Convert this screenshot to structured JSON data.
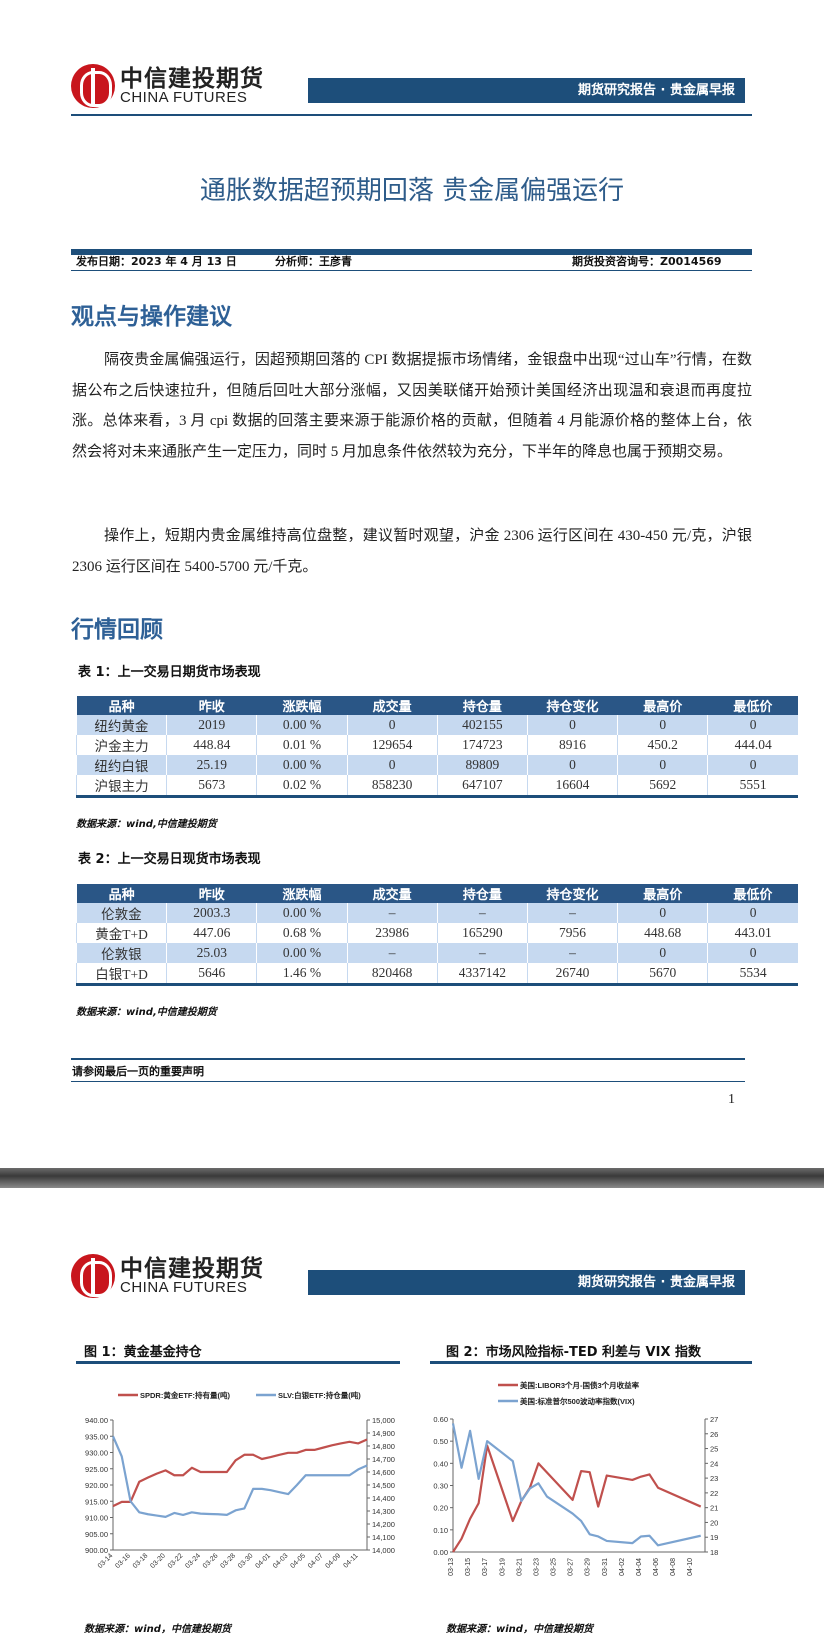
{
  "page1": {
    "logo": {
      "cn": "中信建投期货",
      "en": "CHINA FUTURES"
    },
    "header_label": "期货研究报告 · 贵金属早报",
    "title": "通胀数据超预期回落  贵金属偏强运行",
    "meta": {
      "date": "发布日期：2023 年 4 月 13 日",
      "analyst": "分析师：王彦青",
      "license": "期货投资咨询号：Z0014569"
    },
    "section1": "观点与操作建议",
    "paragraphs": [
      "隔夜贵金属偏强运行，因超预期回落的 CPI 数据提振市场情绪，金银盘中出现“过山车”行情，在数据公布之后快速拉升，但随后回吐大部分涨幅，又因美联储开始预计美国经济出现温和衰退而再度拉涨。总体来看，3 月 cpi 数据的回落主要来源于能源价格的贡献，但随着 4 月能源价格的整体上台，依然会将对未来通胀产生一定压力，同时 5 月加息条件依然较为充分，下半年的降息也属于预期交易。",
      "操作上，短期内贵金属维持高位盘整，建议暂时观望，沪金 2306 运行区间在 430-450 元/克，沪银 2306 运行区间在 5400-5700 元/千克。"
    ],
    "section2": "行情回顾",
    "table1": {
      "caption": "表 1：上一交易日期货市场表现",
      "headers": [
        "品种",
        "昨收",
        "涨跌幅",
        "成交量",
        "持仓量",
        "持仓变化",
        "最高价",
        "最低价"
      ],
      "rows": [
        [
          "纽约黄金",
          "2019",
          "0.00 %",
          "0",
          "402155",
          "0",
          "0",
          "0"
        ],
        [
          "沪金主力",
          "448.84",
          "0.01 %",
          "129654",
          "174723",
          "8916",
          "450.2",
          "444.04"
        ],
        [
          "纽约白银",
          "25.19",
          "0.00 %",
          "0",
          "89809",
          "0",
          "0",
          "0"
        ],
        [
          "沪银主力",
          "5673",
          "0.02 %",
          "858230",
          "647107",
          "16604",
          "5692",
          "5551"
        ]
      ],
      "source": "数据来源：wind,中信建投期货"
    },
    "table2": {
      "caption": "表 2：上一交易日现货市场表现",
      "headers": [
        "品种",
        "昨收",
        "涨跌幅",
        "成交量",
        "持仓量",
        "持仓变化",
        "最高价",
        "最低价"
      ],
      "rows": [
        [
          "伦敦金",
          "2003.3",
          "0.00 %",
          "–",
          "–",
          "–",
          "0",
          "0"
        ],
        [
          "黄金T+D",
          "447.06",
          "0.68 %",
          "23986",
          "165290",
          "7956",
          "448.68",
          "443.01"
        ],
        [
          "伦敦银",
          "25.03",
          "0.00 %",
          "–",
          "–",
          "–",
          "0",
          "0"
        ],
        [
          "白银T+D",
          "5646",
          "1.46 %",
          "820468",
          "4337142",
          "26740",
          "5670",
          "5534"
        ]
      ],
      "source": "数据来源：wind,中信建投期货"
    },
    "disclaimer": "请参阅最后一页的重要声明",
    "page_number": "1"
  },
  "page2": {
    "logo": {
      "cn": "中信建投期货",
      "en": "CHINA FUTURES"
    },
    "header_label": "期货研究报告 · 贵金属早报",
    "source1": "数据来源：wind，中信建投期货",
    "source2": "数据来源：wind，中信建投期货"
  },
  "colors": {
    "brand_blue": "#1d4e7a",
    "red_series": "#c0504d",
    "blue_series": "#7ba3d0",
    "table_stripe": "#c6d9f0"
  },
  "chart_data": [
    {
      "type": "line",
      "title": "图 1：黄金基金持仓",
      "x": [
        "03-14",
        "03-15",
        "03-16",
        "03-17",
        "03-18",
        "03-19",
        "03-20",
        "03-21",
        "03-22",
        "03-23",
        "03-24",
        "03-25",
        "03-26",
        "03-27",
        "03-28",
        "03-29",
        "03-30",
        "03-31",
        "04-01",
        "04-02",
        "04-03",
        "04-04",
        "04-05",
        "04-06",
        "04-07",
        "04-08",
        "04-09",
        "04-10",
        "04-11",
        "04-12"
      ],
      "xticks": [
        "03-14",
        "03-16",
        "03-18",
        "03-20",
        "03-22",
        "03-24",
        "03-26",
        "03-28",
        "03-30",
        "04-01",
        "04-03",
        "04-05",
        "04-07",
        "04-09",
        "04-11"
      ],
      "y_left": {
        "range": [
          900,
          940
        ],
        "ticks": [
          "900.00",
          "905.00",
          "910.00",
          "915.00",
          "920.00",
          "925.00",
          "930.00",
          "935.00",
          "940.00"
        ]
      },
      "y_right": {
        "range": [
          14000,
          15000
        ],
        "ticks": [
          "14,000",
          "14,100",
          "14,200",
          "14,300",
          "14,400",
          "14,500",
          "14,600",
          "14,700",
          "14,800",
          "14,900",
          "15,000"
        ]
      },
      "legend": "top",
      "series": [
        {
          "name": "SPDR:黄金ETF:持有量(吨)",
          "axis": "left",
          "color": "#c0504d",
          "values": [
            913.5,
            914.8,
            914.8,
            921,
            922.3,
            923.5,
            924.5,
            923,
            923,
            925.3,
            924,
            924,
            924,
            924,
            927.6,
            929.3,
            929.3,
            928,
            928.6,
            929.3,
            929.9,
            929.9,
            930.8,
            930.8,
            931.5,
            932.2,
            932.8,
            933.3,
            932.8,
            934
          ]
        },
        {
          "name": "SLV:白银ETF:持仓量(吨)",
          "axis": "right",
          "color": "#7ba3d0",
          "values": [
            14875,
            14720,
            14375,
            14290,
            14275,
            14265,
            14255,
            14285,
            14270,
            14290,
            14280,
            14277,
            14275,
            14270,
            14305,
            14320,
            14470,
            14470,
            14460,
            14445,
            14430,
            14500,
            14575,
            14575,
            14575,
            14575,
            14575,
            14575,
            14620,
            14650
          ]
        }
      ]
    },
    {
      "type": "line",
      "title": "图 2：市场风险指标-TED 利差与 VIX 指数",
      "x": [
        "03-13",
        "03-14",
        "03-15",
        "03-16",
        "03-17",
        "03-18",
        "03-19",
        "03-20",
        "03-21",
        "03-22",
        "03-23",
        "03-24",
        "03-25",
        "03-26",
        "03-27",
        "03-28",
        "03-29",
        "03-30",
        "03-31",
        "04-01",
        "04-02",
        "04-03",
        "04-04",
        "04-05",
        "04-06",
        "04-07",
        "04-08",
        "04-09",
        "04-10",
        "04-11"
      ],
      "xticks": [
        "03-13",
        "03-15",
        "03-17",
        "03-19",
        "03-21",
        "03-23",
        "03-25",
        "03-27",
        "03-29",
        "03-31",
        "04-02",
        "04-04",
        "04-06",
        "04-08",
        "04-10"
      ],
      "y_left": {
        "range": [
          0,
          0.6
        ],
        "ticks": [
          "0.00",
          "0.10",
          "0.20",
          "0.30",
          "0.40",
          "0.50",
          "0.60"
        ]
      },
      "y_right": {
        "range": [
          18,
          27
        ],
        "ticks": [
          "18",
          "19",
          "20",
          "21",
          "22",
          "23",
          "24",
          "25",
          "26",
          "27"
        ]
      },
      "legend": "top",
      "series": [
        {
          "name": "美国:LIBOR3个月-国债3个月收益率",
          "axis": "left",
          "color": "#c0504d",
          "points": [
            [
              "03-13",
              0.0
            ],
            [
              "03-14",
              0.06
            ],
            [
              "03-15",
              0.15
            ],
            [
              "03-16",
              0.22
            ],
            [
              "03-17",
              0.48
            ],
            [
              "03-20",
              0.14
            ],
            [
              "03-21",
              0.23
            ],
            [
              "03-22",
              0.29
            ],
            [
              "03-23",
              0.4
            ],
            [
              "03-27",
              0.235
            ],
            [
              "03-28",
              0.365
            ],
            [
              "03-29",
              0.36
            ],
            [
              "03-30",
              0.205
            ],
            [
              "03-31",
              0.345
            ],
            [
              "04-03",
              0.325
            ],
            [
              "04-04",
              0.34
            ],
            [
              "04-05",
              0.35
            ],
            [
              "04-06",
              0.29
            ],
            [
              "04-11",
              0.205
            ]
          ]
        },
        {
          "name": "美国:标准普尔500波动率指数(VIX)",
          "axis": "right",
          "color": "#7ba3d0",
          "points": [
            [
              "03-13",
              26.7
            ],
            [
              "03-14",
              23.7
            ],
            [
              "03-15",
              26.2
            ],
            [
              "03-16",
              22.95
            ],
            [
              "03-17",
              25.5
            ],
            [
              "03-20",
              24.15
            ],
            [
              "03-21",
              21.45
            ],
            [
              "03-22",
              22.3
            ],
            [
              "03-23",
              22.65
            ],
            [
              "03-24",
              21.75
            ],
            [
              "03-27",
              20.6
            ],
            [
              "03-28",
              20.1
            ],
            [
              "03-29",
              19.2
            ],
            [
              "03-30",
              19.05
            ],
            [
              "03-31",
              18.75
            ],
            [
              "04-03",
              18.6
            ],
            [
              "04-04",
              19.05
            ],
            [
              "04-05",
              19.1
            ],
            [
              "04-06",
              18.45
            ],
            [
              "04-11",
              19.1
            ]
          ]
        }
      ]
    }
  ]
}
